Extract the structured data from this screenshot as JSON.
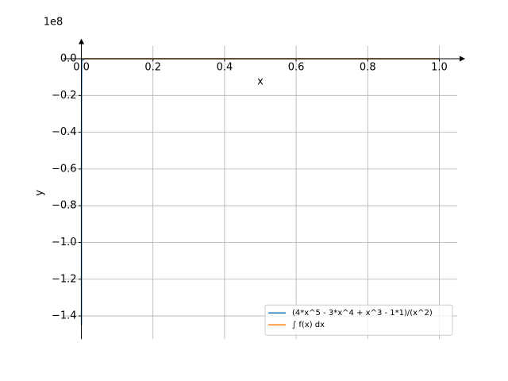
{
  "chart_data": {
    "type": "line",
    "x_label": "x",
    "y_label": "y",
    "y_offset_label": "1e8",
    "x": [
      8.3e-05,
      0.0002,
      0.001,
      0.01,
      0.1,
      0.25,
      0.5,
      0.75,
      1.0
    ],
    "series": [
      {
        "name": "(4*x^5 - 3*x^4 + x^3 - 1*1)/(x^2)",
        "color": "#1f77b4",
        "values": [
          -1.45,
          -0.25,
          -0.01,
          0,
          0,
          0,
          0,
          0,
          0
        ]
      },
      {
        "name": "∫ f(x) dx",
        "color": "#ff7f0e",
        "values": [
          0,
          0,
          0,
          0,
          0,
          0,
          0,
          0,
          0
        ]
      }
    ],
    "xlim": [
      -0.05,
      1.05
    ],
    "ylim": [
      -1.526,
      0.071
    ],
    "xticks": [
      {
        "value": 0,
        "label": "0.0"
      },
      0.2,
      0.4,
      0.6,
      0.8,
      {
        "value": 1,
        "label": "1.0"
      }
    ],
    "yticks": [
      {
        "value": 0,
        "label": "0.0"
      },
      {
        "value": -0.2,
        "label": "−0.2"
      },
      {
        "value": -0.4,
        "label": "−0.4"
      },
      {
        "value": -0.6,
        "label": "−0.6"
      },
      {
        "value": -0.8,
        "label": "−0.8"
      },
      {
        "value": -1.0,
        "label": "−1.0"
      },
      {
        "value": -1.2,
        "label": "−1.2"
      },
      {
        "value": -1.4,
        "label": "−1.4"
      }
    ],
    "grid": true,
    "legend": "lower right"
  }
}
